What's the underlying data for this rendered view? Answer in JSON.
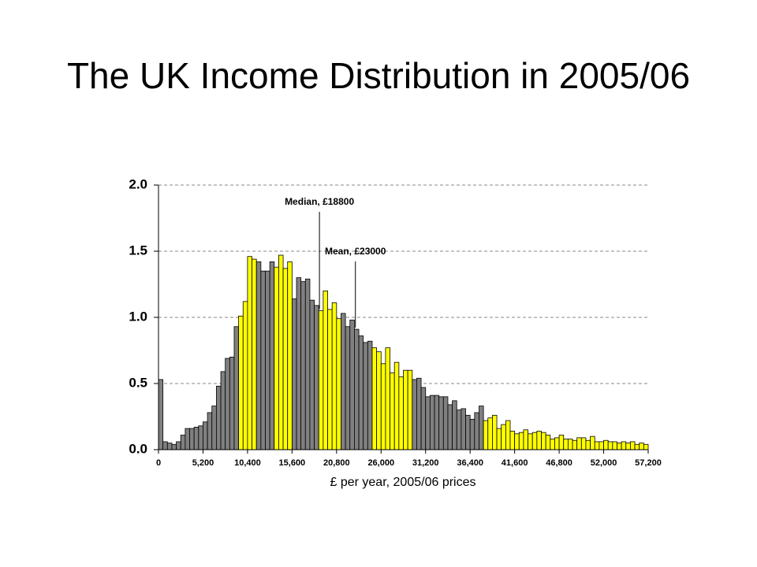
{
  "chart_data": {
    "type": "histogram",
    "title": "The UK Income Distribution in 2005/06",
    "xlabel": "£ per year, 2005/06 prices",
    "bins": [
      0,
      520,
      1040,
      1560,
      2080,
      2600,
      3120,
      3640,
      4160,
      4680,
      5200,
      5720,
      6240,
      6760,
      7280,
      7800,
      8320,
      8840,
      9360,
      9880,
      10400,
      10920,
      11440,
      11960,
      12480,
      13000,
      13520,
      14040,
      14560,
      15080,
      15600,
      16120,
      16640,
      17160,
      17680,
      18200,
      18720,
      19240,
      19760,
      20280,
      20800,
      21320,
      21840,
      22360,
      22880,
      23400,
      23920,
      24440,
      24960,
      25480,
      26000,
      26520,
      27040,
      27560,
      28080,
      28600,
      29120,
      29640,
      30160,
      30680,
      31200,
      31720,
      32240,
      32760,
      33280,
      33800,
      34320,
      34840,
      35360,
      35880,
      36400,
      36920,
      37440,
      37960,
      38480,
      39000,
      39520,
      40040,
      40560,
      41080,
      41600,
      42120,
      42640,
      43160,
      43680,
      44200,
      44720,
      45240,
      45760,
      46280,
      46800,
      47320,
      47840,
      48360,
      48880,
      49400,
      49920,
      50440,
      50960,
      51480,
      52000,
      52520,
      53040,
      53560,
      54080,
      54600,
      55120,
      55640,
      56160,
      56680,
      57200
    ],
    "values": [
      0.53,
      0.06,
      0.05,
      0.04,
      0.06,
      0.11,
      0.16,
      0.16,
      0.17,
      0.18,
      0.21,
      0.28,
      0.33,
      0.48,
      0.59,
      0.69,
      0.7,
      0.93,
      1.01,
      1.12,
      1.46,
      1.44,
      1.42,
      1.35,
      1.35,
      1.42,
      1.38,
      1.47,
      1.37,
      1.42,
      1.14,
      1.3,
      1.27,
      1.29,
      1.13,
      1.09,
      1.05,
      1.2,
      1.06,
      1.11,
      0.99,
      1.03,
      0.93,
      0.98,
      0.91,
      0.86,
      0.81,
      0.82,
      0.77,
      0.74,
      0.65,
      0.77,
      0.58,
      0.66,
      0.55,
      0.6,
      0.6,
      0.53,
      0.54,
      0.47,
      0.4,
      0.41,
      0.41,
      0.4,
      0.4,
      0.34,
      0.37,
      0.3,
      0.31,
      0.26,
      0.23,
      0.28,
      0.33,
      0.22,
      0.24,
      0.26,
      0.16,
      0.19,
      0.22,
      0.14,
      0.12,
      0.13,
      0.15,
      0.12,
      0.13,
      0.14,
      0.13,
      0.11,
      0.08,
      0.09,
      0.11,
      0.08,
      0.08,
      0.07,
      0.09,
      0.09,
      0.07,
      0.1,
      0.06,
      0.06,
      0.07,
      0.06,
      0.06,
      0.05,
      0.06,
      0.05,
      0.06,
      0.04,
      0.05,
      0.04
    ],
    "colors": [
      "#808080",
      "#808080",
      "#808080",
      "#808080",
      "#808080",
      "#808080",
      "#808080",
      "#808080",
      "#808080",
      "#808080",
      "#808080",
      "#808080",
      "#808080",
      "#808080",
      "#808080",
      "#808080",
      "#808080",
      "#808080",
      "#ffff00",
      "#ffff00",
      "#ffff00",
      "#ffff00",
      "#808080",
      "#808080",
      "#808080",
      "#808080",
      "#ffff00",
      "#ffff00",
      "#ffff00",
      "#ffff00",
      "#808080",
      "#808080",
      "#808080",
      "#808080",
      "#808080",
      "#808080",
      "#ffff00",
      "#ffff00",
      "#ffff00",
      "#ffff00",
      "#ffff00",
      "#808080",
      "#808080",
      "#808080",
      "#808080",
      "#808080",
      "#808080",
      "#808080",
      "#ffff00",
      "#ffff00",
      "#ffff00",
      "#ffff00",
      "#ffff00",
      "#ffff00",
      "#ffff00",
      "#ffff00",
      "#ffff00",
      "#808080",
      "#808080",
      "#808080",
      "#808080",
      "#808080",
      "#808080",
      "#808080",
      "#808080",
      "#808080",
      "#808080",
      "#808080",
      "#808080",
      "#808080",
      "#808080",
      "#808080",
      "#808080",
      "#ffff00",
      "#ffff00",
      "#ffff00",
      "#ffff00",
      "#ffff00",
      "#ffff00",
      "#ffff00",
      "#ffff00",
      "#ffff00",
      "#ffff00",
      "#ffff00",
      "#ffff00",
      "#ffff00",
      "#ffff00",
      "#ffff00",
      "#ffff00",
      "#ffff00",
      "#ffff00",
      "#ffff00",
      "#ffff00",
      "#ffff00",
      "#ffff00",
      "#ffff00",
      "#ffff00",
      "#ffff00",
      "#ffff00",
      "#ffff00",
      "#ffff00",
      "#ffff00",
      "#ffff00",
      "#ffff00",
      "#ffff00",
      "#ffff00",
      "#ffff00",
      "#ffff00",
      "#ffff00",
      "#ffff00"
    ],
    "xlim": [
      0,
      57200
    ],
    "xticks": [
      0,
      {
        "value": 5200,
        "label": "5,200"
      },
      {
        "value": 10400,
        "label": "10,400"
      },
      {
        "value": 15600,
        "label": "15,600"
      },
      {
        "value": 20800,
        "label": "20,800"
      },
      {
        "value": 26000,
        "label": "26,000"
      },
      {
        "value": 31200,
        "label": "31,200"
      },
      {
        "value": 36400,
        "label": "36,400"
      },
      {
        "value": 41600,
        "label": "41,600"
      },
      {
        "value": 46800,
        "label": "46,800"
      },
      {
        "value": 52000,
        "label": "52,000"
      },
      {
        "value": 57200,
        "label": "57,200"
      }
    ],
    "ylim": [
      0,
      2
    ],
    "yticks": [
      {
        "value": 0,
        "label": "0.0"
      },
      {
        "value": 0.5,
        "label": "0.5"
      },
      {
        "value": 1,
        "label": "1.0"
      },
      {
        "value": 1.5,
        "label": "1.5"
      },
      {
        "value": 2,
        "label": "2.0"
      }
    ],
    "grid": true,
    "annotations": [
      {
        "text": "Median, £18800",
        "x": 18800
      },
      {
        "text": "Mean, £23000",
        "x": 23000
      }
    ]
  }
}
